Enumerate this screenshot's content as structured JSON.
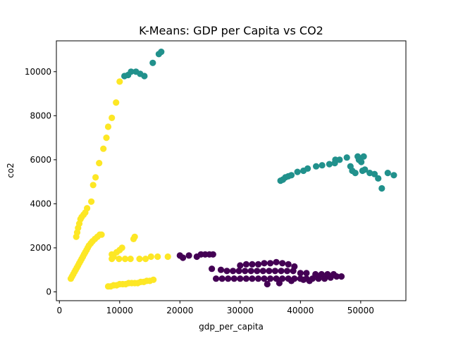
{
  "chart_data": {
    "type": "scatter",
    "title": "K-Means: GDP per Capita vs CO2",
    "xlabel": "gdp_per_capita",
    "ylabel": "co2",
    "xlim": [
      -500,
      57500
    ],
    "ylim": [
      -400,
      11400
    ],
    "xticks": [
      0,
      10000,
      20000,
      30000,
      40000,
      50000
    ],
    "yticks": [
      0,
      2000,
      4000,
      6000,
      8000,
      10000
    ],
    "grid": false,
    "legend": "none",
    "colors": {
      "cluster_0": "#440154",
      "cluster_1": "#21918c",
      "cluster_2": "#fde725"
    },
    "series": [
      {
        "cluster": 2,
        "points": [
          [
            1900,
            600
          ],
          [
            2100,
            700
          ],
          [
            2300,
            800
          ],
          [
            2500,
            900
          ],
          [
            2700,
            1000
          ],
          [
            2900,
            1100
          ],
          [
            3100,
            1200
          ],
          [
            3300,
            1300
          ],
          [
            3500,
            1400
          ],
          [
            3700,
            1500
          ],
          [
            3900,
            1600
          ],
          [
            4100,
            1700
          ],
          [
            4300,
            1800
          ],
          [
            4500,
            1900
          ],
          [
            4700,
            2000
          ],
          [
            4900,
            2100
          ],
          [
            5200,
            2200
          ],
          [
            5500,
            2300
          ],
          [
            5900,
            2400
          ],
          [
            6300,
            2500
          ],
          [
            6700,
            2600
          ],
          [
            7000,
            2600
          ],
          [
            2800,
            2500
          ],
          [
            2950,
            2700
          ],
          [
            3100,
            2900
          ],
          [
            3300,
            3100
          ],
          [
            3500,
            3300
          ],
          [
            3700,
            3400
          ],
          [
            4000,
            3500
          ],
          [
            4300,
            3600
          ],
          [
            4600,
            3800
          ],
          [
            5300,
            4100
          ],
          [
            5600,
            4850
          ],
          [
            6000,
            5200
          ],
          [
            6600,
            5850
          ],
          [
            7300,
            6500
          ],
          [
            7800,
            7000
          ],
          [
            8100,
            7500
          ],
          [
            8700,
            7900
          ],
          [
            9400,
            8600
          ],
          [
            10000,
            9550
          ],
          [
            8700,
            1500
          ],
          [
            9000,
            1600
          ],
          [
            8700,
            1700
          ],
          [
            9500,
            1800
          ],
          [
            10000,
            1900
          ],
          [
            10400,
            2000
          ],
          [
            9900,
            1500
          ],
          [
            10900,
            1500
          ],
          [
            11800,
            1500
          ],
          [
            12300,
            2400
          ],
          [
            12500,
            2500
          ],
          [
            13300,
            1500
          ],
          [
            14300,
            1500
          ],
          [
            15200,
            1600
          ],
          [
            16300,
            1600
          ],
          [
            18000,
            1600
          ],
          [
            8100,
            250
          ],
          [
            8500,
            250
          ],
          [
            9000,
            300
          ],
          [
            9500,
            300
          ],
          [
            10000,
            350
          ],
          [
            10500,
            350
          ],
          [
            11000,
            350
          ],
          [
            11500,
            400
          ],
          [
            12000,
            400
          ],
          [
            12500,
            400
          ],
          [
            13000,
            400
          ],
          [
            13500,
            450
          ],
          [
            14000,
            450
          ],
          [
            14500,
            500
          ],
          [
            15000,
            500
          ],
          [
            15600,
            550
          ]
        ]
      },
      {
        "cluster": 1,
        "points": [
          [
            10800,
            9800
          ],
          [
            11400,
            9850
          ],
          [
            11900,
            10000
          ],
          [
            12700,
            10000
          ],
          [
            13400,
            9900
          ],
          [
            14100,
            9800
          ],
          [
            15500,
            10400
          ],
          [
            16500,
            10800
          ],
          [
            16900,
            10900
          ],
          [
            36700,
            5050
          ],
          [
            37100,
            5100
          ],
          [
            37500,
            5200
          ],
          [
            38000,
            5250
          ],
          [
            38500,
            5300
          ],
          [
            39500,
            5450
          ],
          [
            40500,
            5500
          ],
          [
            41200,
            5600
          ],
          [
            42600,
            5700
          ],
          [
            43600,
            5750
          ],
          [
            44800,
            5800
          ],
          [
            45700,
            5850
          ],
          [
            45800,
            6000
          ],
          [
            46500,
            6000
          ],
          [
            47700,
            6100
          ],
          [
            48300,
            5700
          ],
          [
            48600,
            5500
          ],
          [
            49100,
            5400
          ],
          [
            49500,
            6150
          ],
          [
            49700,
            6000
          ],
          [
            50100,
            5900
          ],
          [
            50300,
            5500
          ],
          [
            50700,
            5550
          ],
          [
            50500,
            6150
          ],
          [
            51500,
            5400
          ],
          [
            52300,
            5350
          ],
          [
            52900,
            5150
          ],
          [
            53500,
            4700
          ],
          [
            54500,
            5400
          ],
          [
            55500,
            5300
          ]
        ]
      },
      {
        "cluster": 0,
        "points": [
          [
            20000,
            1650
          ],
          [
            20500,
            1550
          ],
          [
            21500,
            1650
          ],
          [
            22800,
            1600
          ],
          [
            23500,
            1700
          ],
          [
            24200,
            1700
          ],
          [
            24900,
            1700
          ],
          [
            25500,
            1700
          ],
          [
            25300,
            1050
          ],
          [
            26000,
            600
          ],
          [
            27000,
            600
          ],
          [
            28000,
            600
          ],
          [
            29000,
            600
          ],
          [
            30000,
            600
          ],
          [
            31000,
            600
          ],
          [
            32000,
            600
          ],
          [
            33000,
            600
          ],
          [
            34000,
            600
          ],
          [
            35000,
            600
          ],
          [
            36000,
            600
          ],
          [
            37000,
            600
          ],
          [
            38000,
            600
          ],
          [
            39000,
            600
          ],
          [
            40000,
            600
          ],
          [
            41000,
            600
          ],
          [
            42000,
            600
          ],
          [
            43000,
            600
          ],
          [
            44000,
            600
          ],
          [
            45000,
            650
          ],
          [
            46000,
            700
          ],
          [
            46800,
            700
          ],
          [
            26800,
            1000
          ],
          [
            27800,
            950
          ],
          [
            28800,
            950
          ],
          [
            29800,
            950
          ],
          [
            30800,
            950
          ],
          [
            31800,
            950
          ],
          [
            32800,
            950
          ],
          [
            33800,
            950
          ],
          [
            34800,
            950
          ],
          [
            35800,
            950
          ],
          [
            36800,
            950
          ],
          [
            37800,
            950
          ],
          [
            38800,
            950
          ],
          [
            30000,
            1200
          ],
          [
            31000,
            1250
          ],
          [
            32000,
            1250
          ],
          [
            33000,
            1250
          ],
          [
            34000,
            1300
          ],
          [
            35000,
            1300
          ],
          [
            36000,
            1350
          ],
          [
            37000,
            1300
          ],
          [
            38000,
            1250
          ],
          [
            39000,
            1150
          ],
          [
            34500,
            350
          ],
          [
            36500,
            400
          ],
          [
            38500,
            500
          ],
          [
            40500,
            550
          ],
          [
            41500,
            500
          ],
          [
            42500,
            800
          ],
          [
            43500,
            800
          ],
          [
            44500,
            800
          ],
          [
            45500,
            800
          ],
          [
            40000,
            850
          ],
          [
            41000,
            850
          ]
        ]
      }
    ]
  }
}
